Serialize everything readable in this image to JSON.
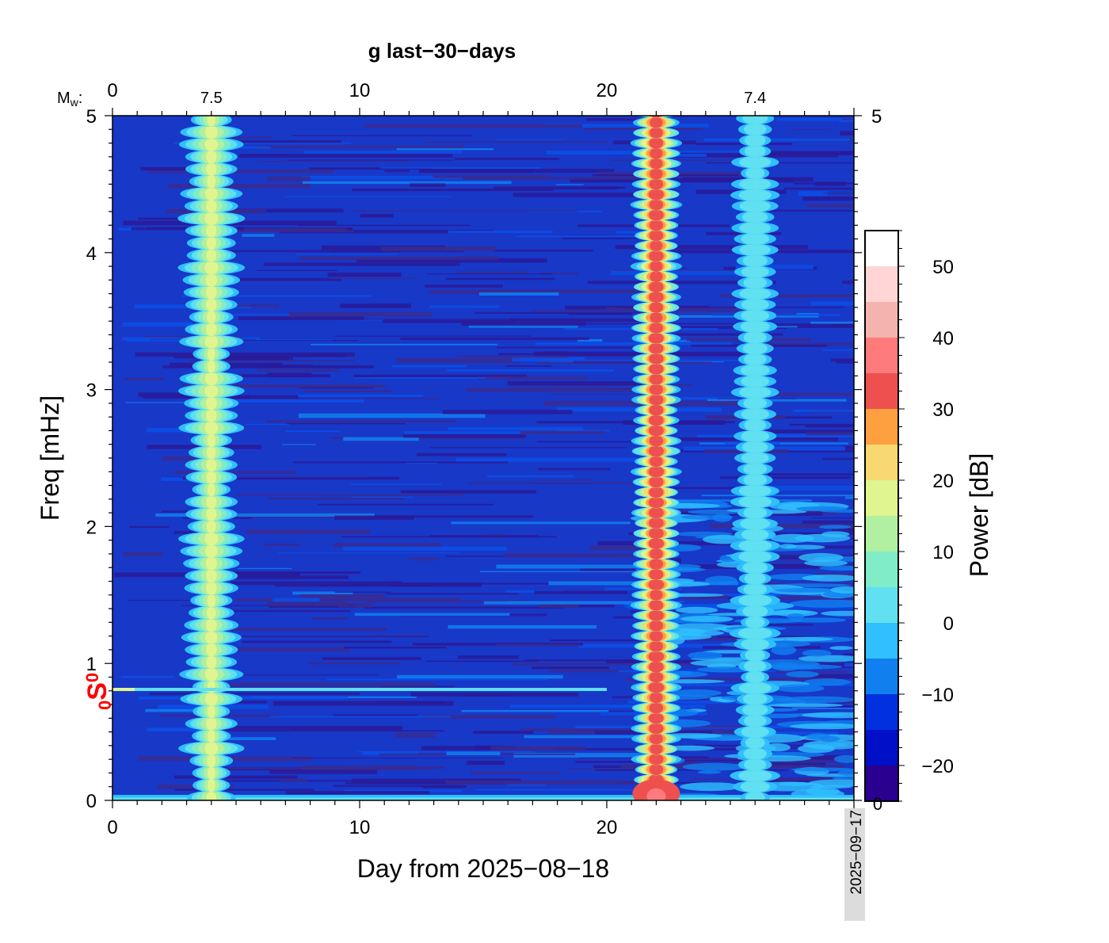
{
  "chart_data": {
    "type": "heatmap",
    "title": "g last−30−days",
    "xlabel": "Day from 2025−08−18",
    "ylabel": "Freq [mHz]",
    "colorbar_label": "Power [dB]",
    "end_date_label": "2025−09−17",
    "xlim": [
      0,
      30
    ],
    "ylim": [
      0,
      5
    ],
    "x_ticks": [
      "0",
      "10",
      "20"
    ],
    "y_ticks": [
      "0",
      "1",
      "2",
      "3",
      "4",
      "5"
    ],
    "y_right_ticks": [
      "5"
    ],
    "top_axis": {
      "label": "M",
      "label_sub": "w",
      "label_suffix": ":",
      "ticks": [
        "0",
        "10",
        "20"
      ],
      "events": [
        {
          "day": 4.0,
          "magnitude": "7.5"
        },
        {
          "day": 26.0,
          "magnitude": "7.4"
        }
      ]
    },
    "strong_band_day": 22.0,
    "mode_marker": {
      "label": "S",
      "pre_sub": "0",
      "post_sub": "0",
      "freq_mhz": 0.81,
      "day_end": 20,
      "color": "#ff0000"
    },
    "colorbar": {
      "range": [
        -25,
        55
      ],
      "step": 5,
      "tick_labels": [
        "50",
        "40",
        "30",
        "20",
        "10",
        "0",
        "−10",
        "−20"
      ],
      "tick_values": [
        50,
        40,
        30,
        20,
        10,
        0,
        -10,
        -20
      ],
      "bottom_label": "0",
      "colors": [
        "#2a0090",
        "#0010c8",
        "#0030e0",
        "#1080f0",
        "#30c0ff",
        "#60e0f0",
        "#80ecc8",
        "#b0f0a0",
        "#e0f590",
        "#f8d870",
        "#ffa040",
        "#ee5050",
        "#ff7b7b",
        "#f5b3ad",
        "#ffd5d5",
        "#ffffff"
      ]
    }
  }
}
